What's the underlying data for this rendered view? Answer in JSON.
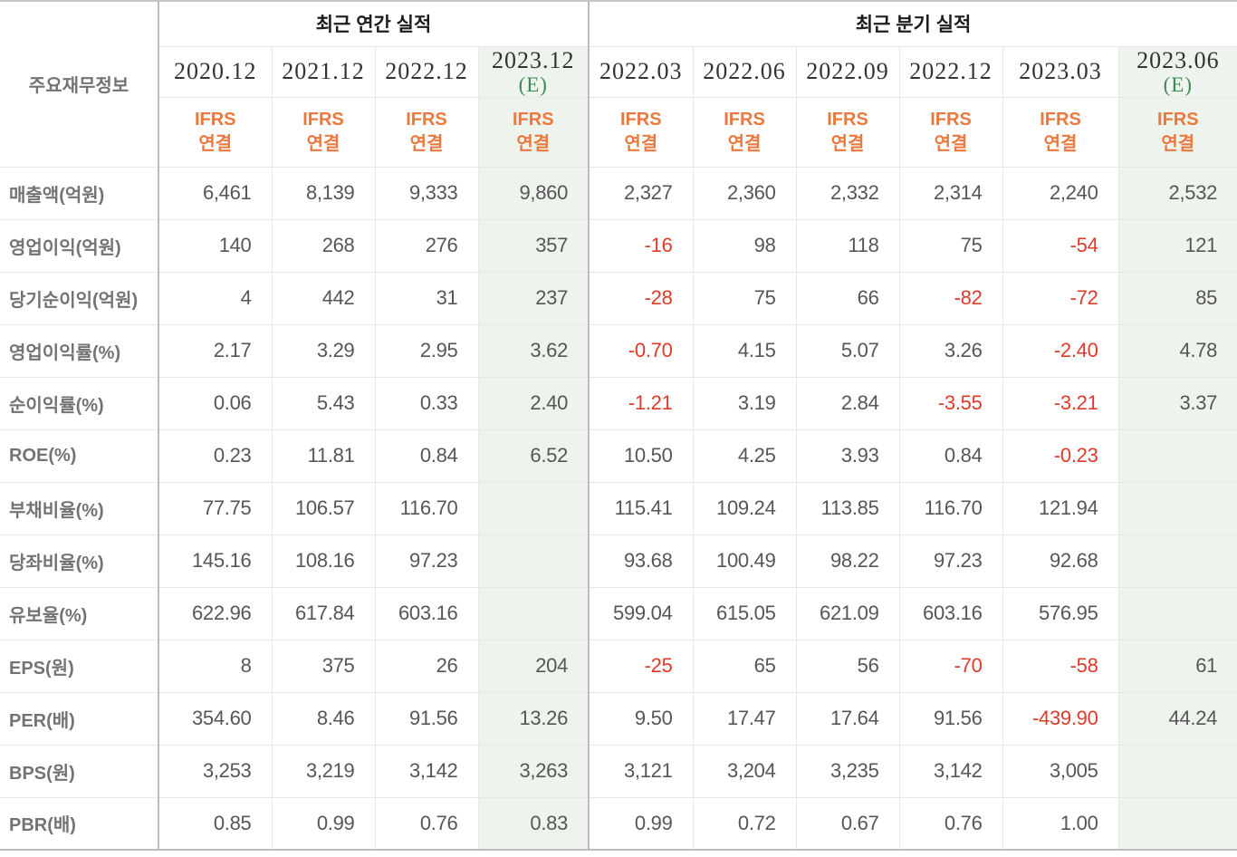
{
  "chart_data": {
    "type": "table",
    "corner_label": "주요재무정보",
    "sections": [
      {
        "label": "최근 연간 실적",
        "span": 4
      },
      {
        "label": "최근 분기 실적",
        "span": 6
      }
    ],
    "estimate_marker": "(E)",
    "columns": [
      {
        "period": "2020.12",
        "standard": "IFRS",
        "scope": "연결",
        "estimate": false
      },
      {
        "period": "2021.12",
        "standard": "IFRS",
        "scope": "연결",
        "estimate": false
      },
      {
        "period": "2022.12",
        "standard": "IFRS",
        "scope": "연결",
        "estimate": false
      },
      {
        "period": "2023.12",
        "standard": "IFRS",
        "scope": "연결",
        "estimate": true
      },
      {
        "period": "2022.03",
        "standard": "IFRS",
        "scope": "연결",
        "estimate": false
      },
      {
        "period": "2022.06",
        "standard": "IFRS",
        "scope": "연결",
        "estimate": false
      },
      {
        "period": "2022.09",
        "standard": "IFRS",
        "scope": "연결",
        "estimate": false
      },
      {
        "period": "2022.12",
        "standard": "IFRS",
        "scope": "연결",
        "estimate": false
      },
      {
        "period": "2023.03",
        "standard": "IFRS",
        "scope": "연결",
        "estimate": false
      },
      {
        "period": "2023.06",
        "standard": "IFRS",
        "scope": "연결",
        "estimate": true
      }
    ],
    "rows": [
      {
        "label": "매출액(억원)",
        "values": [
          "6,461",
          "8,139",
          "9,333",
          "9,860",
          "2,327",
          "2,360",
          "2,332",
          "2,314",
          "2,240",
          "2,532"
        ]
      },
      {
        "label": "영업이익(억원)",
        "values": [
          "140",
          "268",
          "276",
          "357",
          "-16",
          "98",
          "118",
          "75",
          "-54",
          "121"
        ]
      },
      {
        "label": "당기순이익(억원)",
        "values": [
          "4",
          "442",
          "31",
          "237",
          "-28",
          "75",
          "66",
          "-82",
          "-72",
          "85"
        ]
      },
      {
        "label": "영업이익률(%)",
        "values": [
          "2.17",
          "3.29",
          "2.95",
          "3.62",
          "-0.70",
          "4.15",
          "5.07",
          "3.26",
          "-2.40",
          "4.78"
        ]
      },
      {
        "label": "순이익률(%)",
        "values": [
          "0.06",
          "5.43",
          "0.33",
          "2.40",
          "-1.21",
          "3.19",
          "2.84",
          "-3.55",
          "-3.21",
          "3.37"
        ]
      },
      {
        "label": "ROE(%)",
        "values": [
          "0.23",
          "11.81",
          "0.84",
          "6.52",
          "10.50",
          "4.25",
          "3.93",
          "0.84",
          "-0.23",
          ""
        ]
      },
      {
        "label": "부채비율(%)",
        "values": [
          "77.75",
          "106.57",
          "116.70",
          "",
          "115.41",
          "109.24",
          "113.85",
          "116.70",
          "121.94",
          ""
        ]
      },
      {
        "label": "당좌비율(%)",
        "values": [
          "145.16",
          "108.16",
          "97.23",
          "",
          "93.68",
          "100.49",
          "98.22",
          "97.23",
          "92.68",
          ""
        ]
      },
      {
        "label": "유보율(%)",
        "values": [
          "622.96",
          "617.84",
          "603.16",
          "",
          "599.04",
          "615.05",
          "621.09",
          "603.16",
          "576.95",
          ""
        ]
      },
      {
        "label": "EPS(원)",
        "values": [
          "8",
          "375",
          "26",
          "204",
          "-25",
          "65",
          "56",
          "-70",
          "-58",
          "61"
        ]
      },
      {
        "label": "PER(배)",
        "values": [
          "354.60",
          "8.46",
          "91.56",
          "13.26",
          "9.50",
          "17.47",
          "17.64",
          "91.56",
          "-439.90",
          "44.24"
        ]
      },
      {
        "label": "BPS(원)",
        "values": [
          "3,253",
          "3,219",
          "3,142",
          "3,263",
          "3,121",
          "3,204",
          "3,235",
          "3,142",
          "3,005",
          ""
        ]
      },
      {
        "label": "PBR(배)",
        "values": [
          "0.85",
          "0.99",
          "0.76",
          "0.83",
          "0.99",
          "0.72",
          "0.67",
          "0.76",
          "1.00",
          ""
        ]
      }
    ]
  },
  "colors": {
    "value_text": "#565656",
    "negative_value_text": "#dd3a28",
    "ifrs_label_orange": "#e9793f",
    "estimate_marker_green": "#3c8c59",
    "estimate_column_bg": "#eef3ed",
    "row_label_gray": "#737373",
    "period_text": "#333333",
    "section_title_text": "#1c1c1c",
    "strong_border": "#bcbcbc",
    "light_border": "#e7e7e7"
  }
}
